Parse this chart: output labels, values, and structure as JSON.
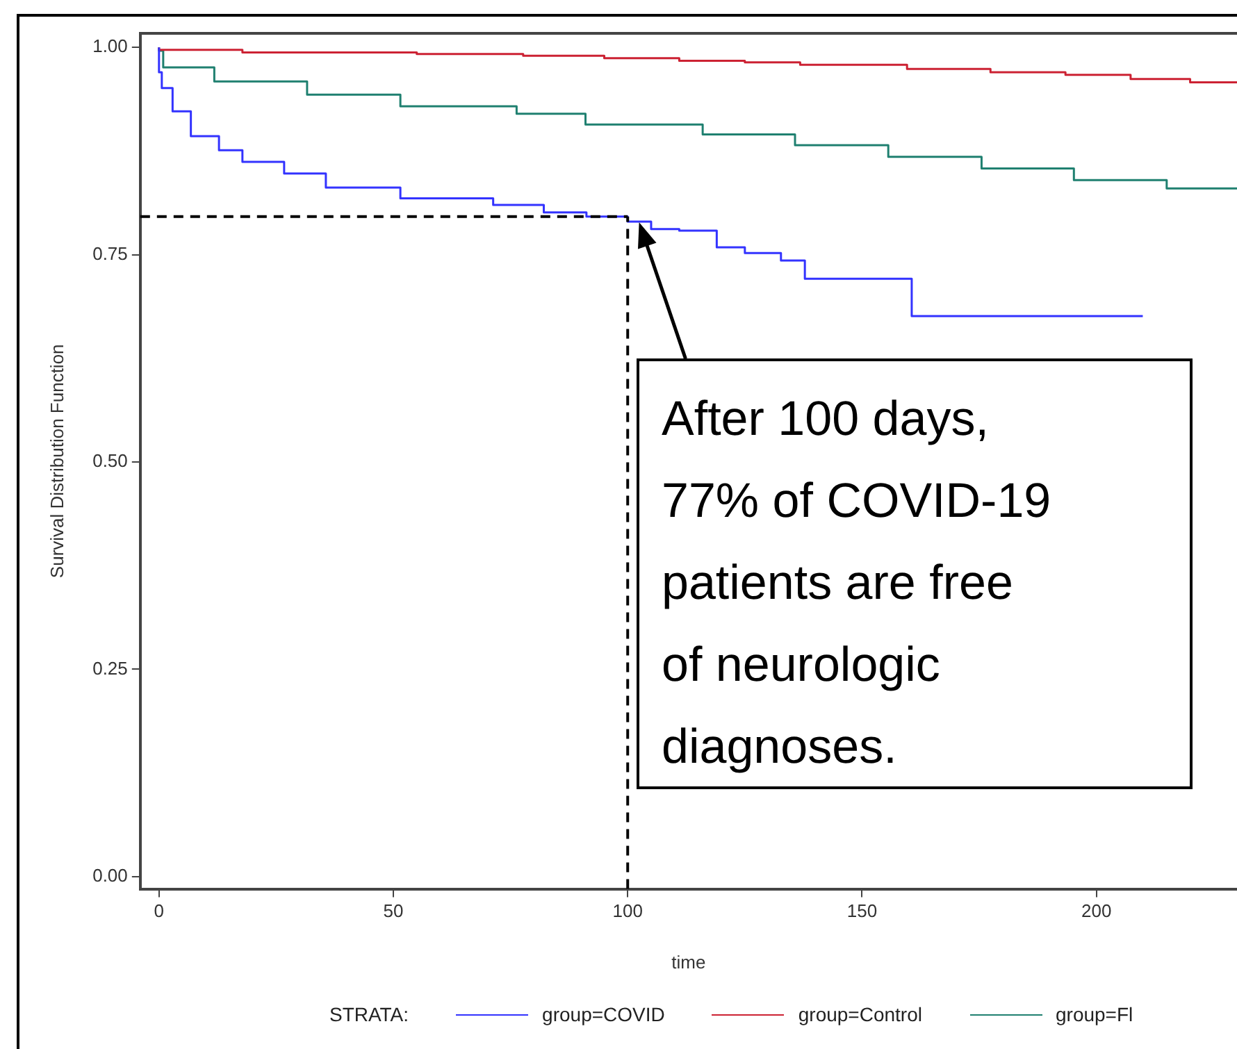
{
  "chart_data": {
    "type": "step",
    "xlabel": "time",
    "ylabel": "Survival Distribution Function",
    "legend_title": "STRATA:",
    "legend": "bottom",
    "grid": false,
    "marker": "none",
    "line_style": "solid",
    "xlim": [
      -4,
      230
    ],
    "xticks": [
      0,
      50,
      100,
      150,
      200
    ],
    "ylim": [
      -0.015,
      1.017
    ],
    "yticks": [
      {
        "value": 0,
        "label": "0.00"
      },
      {
        "value": 0.25,
        "label": "0.25"
      },
      {
        "value": 0.5,
        "label": "0.50"
      },
      {
        "value": 0.75,
        "label": "0.75"
      },
      {
        "value": 1,
        "label": "1.00"
      }
    ],
    "series": [
      {
        "name": "group=COVID",
        "color": "#3333ff",
        "x": [
          0,
          0.6,
          2.9,
          6.8,
          12.8,
          17.8,
          26.7,
          35.6,
          51.5,
          71.3,
          82.1,
          91.2,
          100,
          105,
          111,
          119,
          125,
          132.7,
          137.8,
          160.6,
          171.7,
          209.9
        ],
        "values": [
          1,
          0.97,
          0.951,
          0.923,
          0.893,
          0.876,
          0.862,
          0.848,
          0.831,
          0.818,
          0.81,
          0.801,
          0.796,
          0.79,
          0.781,
          0.779,
          0.759,
          0.752,
          0.743,
          0.721,
          0.676,
          0.676
        ]
      },
      {
        "name": "group=Control",
        "color": "#cc2233",
        "x": [
          0,
          17.8,
          55,
          77.7,
          95,
          111,
          125,
          136.8,
          159.6,
          177.4,
          193.4,
          207.3,
          220,
          230
        ],
        "values": [
          1,
          0.997,
          0.994,
          0.992,
          0.99,
          0.987,
          0.984,
          0.982,
          0.979,
          0.974,
          0.97,
          0.967,
          0.962,
          0.958
        ]
      },
      {
        "name": "group=Fl",
        "color": "#1f8070",
        "x": [
          0,
          0.9,
          11.8,
          31.6,
          51.5,
          76.3,
          91,
          116,
          135.7,
          155.6,
          175.5,
          195.2,
          215,
          230
        ],
        "values": [
          1,
          0.996,
          0.976,
          0.959,
          0.943,
          0.929,
          0.92,
          0.907,
          0.895,
          0.882,
          0.868,
          0.854,
          0.84,
          0.83
        ]
      }
    ],
    "ref_lines": [
      {
        "axis": "y",
        "value": 0.796,
        "line_style": "dashed",
        "color": "#000000"
      },
      {
        "axis": "x",
        "value": 100,
        "line_style": "dashed",
        "color": "#000000"
      }
    ],
    "annotations": [
      "After 100 days,\n77% of COVID-19\npatients are free\nof neurologic\ndiagnoses."
    ]
  }
}
